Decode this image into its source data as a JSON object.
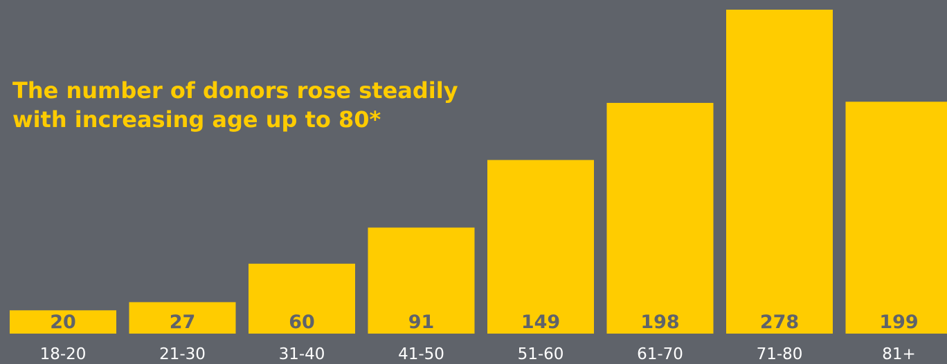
{
  "colors": {
    "background": "#5f636a",
    "bar": "#ffcc00",
    "value_label": "#5f636a",
    "category_label": "#ffffff",
    "title": "#ffcc00"
  },
  "chart_data": {
    "type": "bar",
    "title": "The number of donors rose steadily\nwith increasing age up to 80*",
    "xlabel": "",
    "ylabel": "",
    "categories": [
      "18-20",
      "21-30",
      "31-40",
      "41-50",
      "51-60",
      "61-70",
      "71-80",
      "81+"
    ],
    "values": [
      20,
      27,
      60,
      91,
      149,
      198,
      278,
      199
    ],
    "value_labels": [
      "20",
      "27",
      "60",
      "91",
      "149",
      "198",
      "278",
      "199"
    ],
    "ylim": [
      0,
      278
    ],
    "grid": false,
    "legend": "none"
  }
}
